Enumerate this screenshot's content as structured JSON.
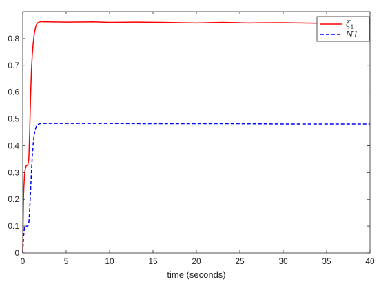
{
  "chart_data": {
    "type": "line",
    "xlabel": "time (seconds)",
    "ylabel": "",
    "xlim": [
      0,
      40
    ],
    "ylim": [
      0,
      0.9
    ],
    "xticks": [
      0,
      5,
      10,
      15,
      20,
      25,
      30,
      35,
      40
    ],
    "yticks": [
      0,
      0.1,
      0.2,
      0.3,
      0.4,
      0.5,
      0.6,
      0.7,
      0.8
    ],
    "ytick_labels": [
      "0",
      "0.1",
      "0.2",
      "0.3",
      "0.4",
      "0.5",
      "0.6",
      "0.7",
      "0.8"
    ],
    "grid": false,
    "legend_position": "top-right",
    "series": [
      {
        "name": "ζ1",
        "legend_main": "ζ",
        "legend_sub": "1",
        "color": "#ff0000",
        "style": "solid",
        "x": [
          0,
          0.05,
          0.1,
          0.2,
          0.3,
          0.4,
          0.5,
          0.6,
          0.7,
          0.8,
          0.9,
          1.0,
          1.1,
          1.2,
          1.3,
          1.4,
          1.5,
          1.6,
          1.7,
          1.8,
          1.9,
          2.0,
          2.2,
          2.5,
          3.0,
          5,
          8,
          10,
          13,
          16,
          20,
          23,
          26,
          30,
          34,
          37,
          40
        ],
        "y": [
          0,
          0.12,
          0.22,
          0.29,
          0.315,
          0.325,
          0.327,
          0.33,
          0.35,
          0.45,
          0.58,
          0.68,
          0.74,
          0.78,
          0.81,
          0.83,
          0.845,
          0.853,
          0.857,
          0.86,
          0.861,
          0.862,
          0.863,
          0.862,
          0.862,
          0.861,
          0.862,
          0.86,
          0.861,
          0.86,
          0.858,
          0.86,
          0.858,
          0.859,
          0.857,
          0.859,
          0.858
        ]
      },
      {
        "name": "N1",
        "legend_main": "N1",
        "legend_sub": "",
        "color": "#0000ff",
        "style": "dashed",
        "x": [
          0,
          0.1,
          0.2,
          0.3,
          0.4,
          0.5,
          0.6,
          0.7,
          0.8,
          0.9,
          1.0,
          1.1,
          1.2,
          1.3,
          1.4,
          1.5,
          1.6,
          1.7,
          1.8,
          1.9,
          2.0,
          2.2,
          2.5,
          3.0,
          5,
          10,
          15,
          20,
          25,
          30,
          35,
          40
        ],
        "y": [
          0,
          0.06,
          0.095,
          0.1,
          0.1,
          0.1,
          0.101,
          0.11,
          0.16,
          0.23,
          0.3,
          0.36,
          0.405,
          0.435,
          0.455,
          0.467,
          0.474,
          0.478,
          0.48,
          0.481,
          0.482,
          0.483,
          0.483,
          0.483,
          0.483,
          0.483,
          0.482,
          0.482,
          0.482,
          0.481,
          0.481,
          0.481
        ]
      }
    ]
  }
}
